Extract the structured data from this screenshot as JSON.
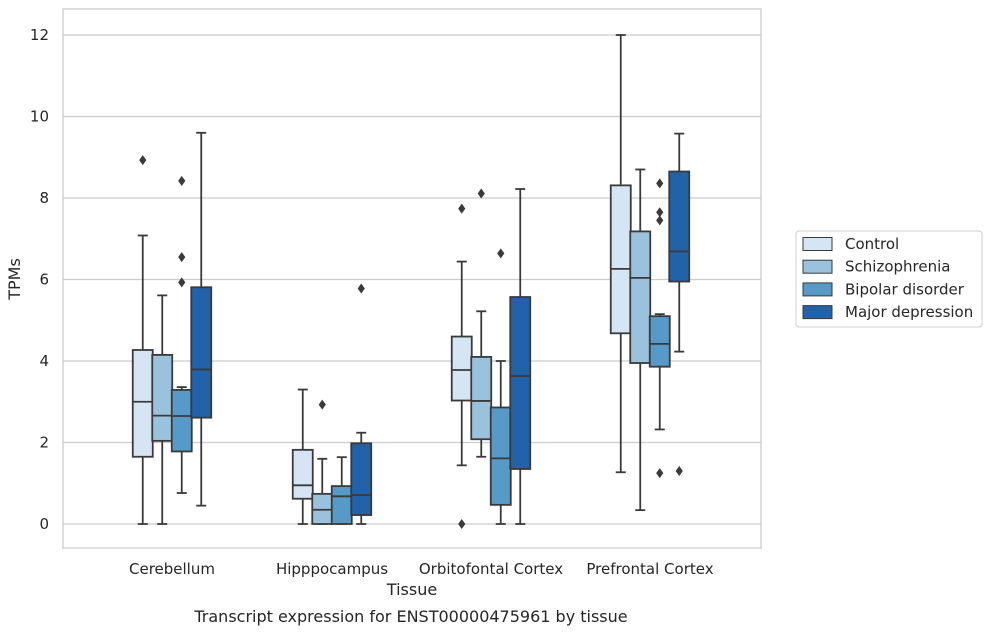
{
  "caption": "Transcript expression for ENST00000475961 by tissue",
  "chart_data": {
    "type": "box",
    "xlabel": "Tissue",
    "ylabel": "TPMs",
    "ylim": [
      -0.6,
      12.6
    ],
    "yticks": [
      0,
      2,
      4,
      6,
      8,
      10,
      12
    ],
    "grid": "horizontal",
    "legend_position": "right",
    "categories": [
      "Cerebellum",
      "Hipppocampus",
      "Orbitofontal Cortex",
      "Prefrontal Cortex"
    ],
    "series": [
      {
        "name": "Control",
        "color": "#d6e5f3",
        "boxes": [
          {
            "whislo": 0.0,
            "q1": 1.65,
            "med": 3.0,
            "q3": 4.27,
            "whishi": 7.08,
            "fliers": [
              8.93
            ]
          },
          {
            "whislo": 0.0,
            "q1": 0.62,
            "med": 0.95,
            "q3": 1.82,
            "whishi": 3.3,
            "fliers": []
          },
          {
            "whislo": 1.44,
            "q1": 3.03,
            "med": 3.78,
            "q3": 4.6,
            "whishi": 6.44,
            "fliers": [
              7.74,
              0.0
            ]
          },
          {
            "whislo": 1.27,
            "q1": 4.68,
            "med": 6.26,
            "q3": 8.31,
            "whishi": 12.0,
            "fliers": []
          }
        ]
      },
      {
        "name": "Schizophrenia",
        "color": "#9ac2dc",
        "boxes": [
          {
            "whislo": 0.0,
            "q1": 2.04,
            "med": 2.66,
            "q3": 4.15,
            "whishi": 5.61,
            "fliers": []
          },
          {
            "whislo": 0.0,
            "q1": 0.0,
            "med": 0.35,
            "q3": 0.74,
            "whishi": 1.6,
            "fliers": [
              2.93
            ]
          },
          {
            "whislo": 1.65,
            "q1": 2.08,
            "med": 3.02,
            "q3": 4.1,
            "whishi": 5.22,
            "fliers": [
              8.11
            ]
          },
          {
            "whislo": 0.34,
            "q1": 3.95,
            "med": 6.04,
            "q3": 7.18,
            "whishi": 8.7,
            "fliers": []
          }
        ]
      },
      {
        "name": "Bipolar disorder",
        "color": "#5799c7",
        "boxes": [
          {
            "whislo": 0.76,
            "q1": 1.78,
            "med": 2.65,
            "q3": 3.29,
            "whishi": 3.36,
            "fliers": [
              5.93,
              6.55,
              8.42
            ]
          },
          {
            "whislo": 0.0,
            "q1": 0.0,
            "med": 0.68,
            "q3": 0.93,
            "whishi": 1.64,
            "fliers": []
          },
          {
            "whislo": 0.0,
            "q1": 0.47,
            "med": 1.61,
            "q3": 2.86,
            "whishi": 4.0,
            "fliers": [
              6.64
            ]
          },
          {
            "whislo": 2.32,
            "q1": 3.86,
            "med": 4.42,
            "q3": 5.1,
            "whishi": 5.15,
            "fliers": [
              7.45,
              7.65,
              8.36,
              1.25
            ]
          }
        ]
      },
      {
        "name": "Major depression",
        "color": "#2162a8",
        "boxes": [
          {
            "whislo": 0.45,
            "q1": 2.61,
            "med": 3.79,
            "q3": 5.81,
            "whishi": 9.6,
            "fliers": []
          },
          {
            "whislo": 0.0,
            "q1": 0.22,
            "med": 0.71,
            "q3": 1.98,
            "whishi": 2.24,
            "fliers": [
              5.78
            ]
          },
          {
            "whislo": 0.0,
            "q1": 1.35,
            "med": 3.63,
            "q3": 5.57,
            "whishi": 8.22,
            "fliers": []
          },
          {
            "whislo": 4.23,
            "q1": 5.95,
            "med": 6.69,
            "q3": 8.65,
            "whishi": 9.58,
            "fliers": [
              1.3
            ]
          }
        ]
      }
    ]
  }
}
